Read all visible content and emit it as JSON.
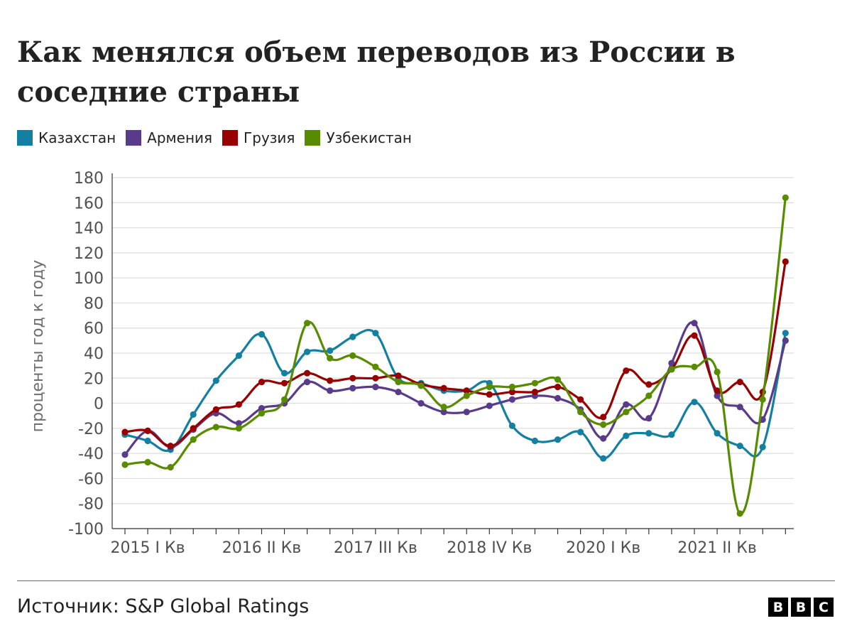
{
  "title": "Как менялся объем переводов из России в соседние страны",
  "source": "Источник: S&P Global Ratings",
  "brand": {
    "logo_letters": [
      "B",
      "B",
      "C"
    ]
  },
  "chart_data": {
    "type": "line",
    "title": "Как менялся объем переводов из России в соседние страны",
    "ylabel": "проценты год к году",
    "xlabel": "",
    "ylim": [
      -100,
      180
    ],
    "yticks": [
      180,
      160,
      140,
      120,
      100,
      80,
      60,
      40,
      20,
      0,
      -20,
      -40,
      -60,
      -80,
      -100
    ],
    "grid": true,
    "legend_position": "top-left",
    "x_tick_labels": [
      {
        "label": "2015 I Кв",
        "index": 1
      },
      {
        "label": "2016 II Кв",
        "index": 6
      },
      {
        "label": "2017 III Кв",
        "index": 11
      },
      {
        "label": "2018 IV Кв",
        "index": 16
      },
      {
        "label": "2020 I Кв",
        "index": 21
      },
      {
        "label": "2021 II Кв",
        "index": 26
      }
    ],
    "x_count": 30,
    "series": [
      {
        "name": "Казахстан",
        "color": "#1380A1",
        "values": [
          -25,
          -30,
          -37,
          -9,
          18,
          38,
          55,
          24,
          41,
          42,
          53,
          56,
          20,
          16,
          10,
          10,
          16,
          -18,
          -30,
          -29,
          -23,
          -44,
          -26,
          -24,
          -25,
          1,
          -24,
          -34,
          -35,
          56
        ]
      },
      {
        "name": "Армения",
        "color": "#5A3A8A",
        "values": [
          -41,
          -22,
          -35,
          -21,
          -8,
          -16,
          -4,
          0,
          17,
          10,
          12,
          13,
          9,
          0,
          -7,
          -7,
          -2,
          3,
          6,
          4,
          -5,
          -28,
          -1,
          -12,
          32,
          64,
          6,
          -3,
          -13,
          50
        ]
      },
      {
        "name": "Грузия",
        "color": "#990000",
        "values": [
          -23,
          -22,
          -34,
          -20,
          -5,
          -1,
          17,
          16,
          24,
          18,
          20,
          20,
          22,
          15,
          12,
          10,
          7,
          9,
          9,
          13,
          3,
          -11,
          26,
          15,
          27,
          54,
          10,
          17,
          9,
          113
        ]
      },
      {
        "name": "Узбекистан",
        "color": "#588C00",
        "values": [
          -49,
          -47,
          -51,
          -29,
          -19,
          -20,
          -8,
          3,
          64,
          36,
          38,
          29,
          17,
          14,
          -3,
          6,
          13,
          13,
          16,
          19,
          -7,
          -17,
          -7,
          6,
          27,
          29,
          25,
          -88,
          3,
          164
        ]
      }
    ]
  }
}
